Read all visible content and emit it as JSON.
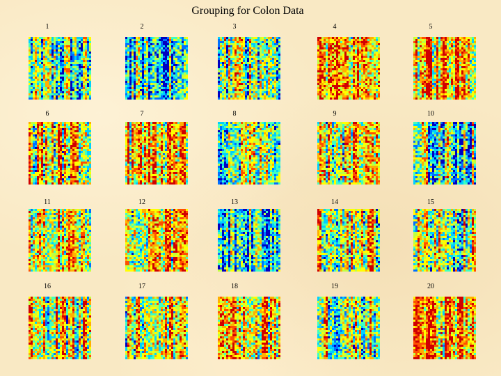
{
  "page": {
    "title": "Grouping for Colon Data"
  },
  "chart_data": {
    "type": "heatmap",
    "title": "Grouping for Colon Data",
    "colormap": [
      "#0000c0",
      "#0070ff",
      "#00d0ff",
      "#40ffc0",
      "#c0ff40",
      "#ffff00",
      "#ffb000",
      "#ff5000",
      "#d00000"
    ],
    "panels": [
      {
        "label": "1",
        "bias": 0.38
      },
      {
        "label": "2",
        "bias": 0.3
      },
      {
        "label": "3",
        "bias": 0.48
      },
      {
        "label": "4",
        "bias": 0.68
      },
      {
        "label": "5",
        "bias": 0.72
      },
      {
        "label": "6",
        "bias": 0.62
      },
      {
        "label": "7",
        "bias": 0.66
      },
      {
        "label": "8",
        "bias": 0.5
      },
      {
        "label": "9",
        "bias": 0.55
      },
      {
        "label": "10",
        "bias": 0.4
      },
      {
        "label": "11",
        "bias": 0.6
      },
      {
        "label": "12",
        "bias": 0.62
      },
      {
        "label": "13",
        "bias": 0.36
      },
      {
        "label": "14",
        "bias": 0.6
      },
      {
        "label": "15",
        "bias": 0.56
      },
      {
        "label": "16",
        "bias": 0.58
      },
      {
        "label": "17",
        "bias": 0.56
      },
      {
        "label": "18",
        "bias": 0.66
      },
      {
        "label": "19",
        "bias": 0.56
      },
      {
        "label": "20",
        "bias": 0.7
      }
    ]
  }
}
